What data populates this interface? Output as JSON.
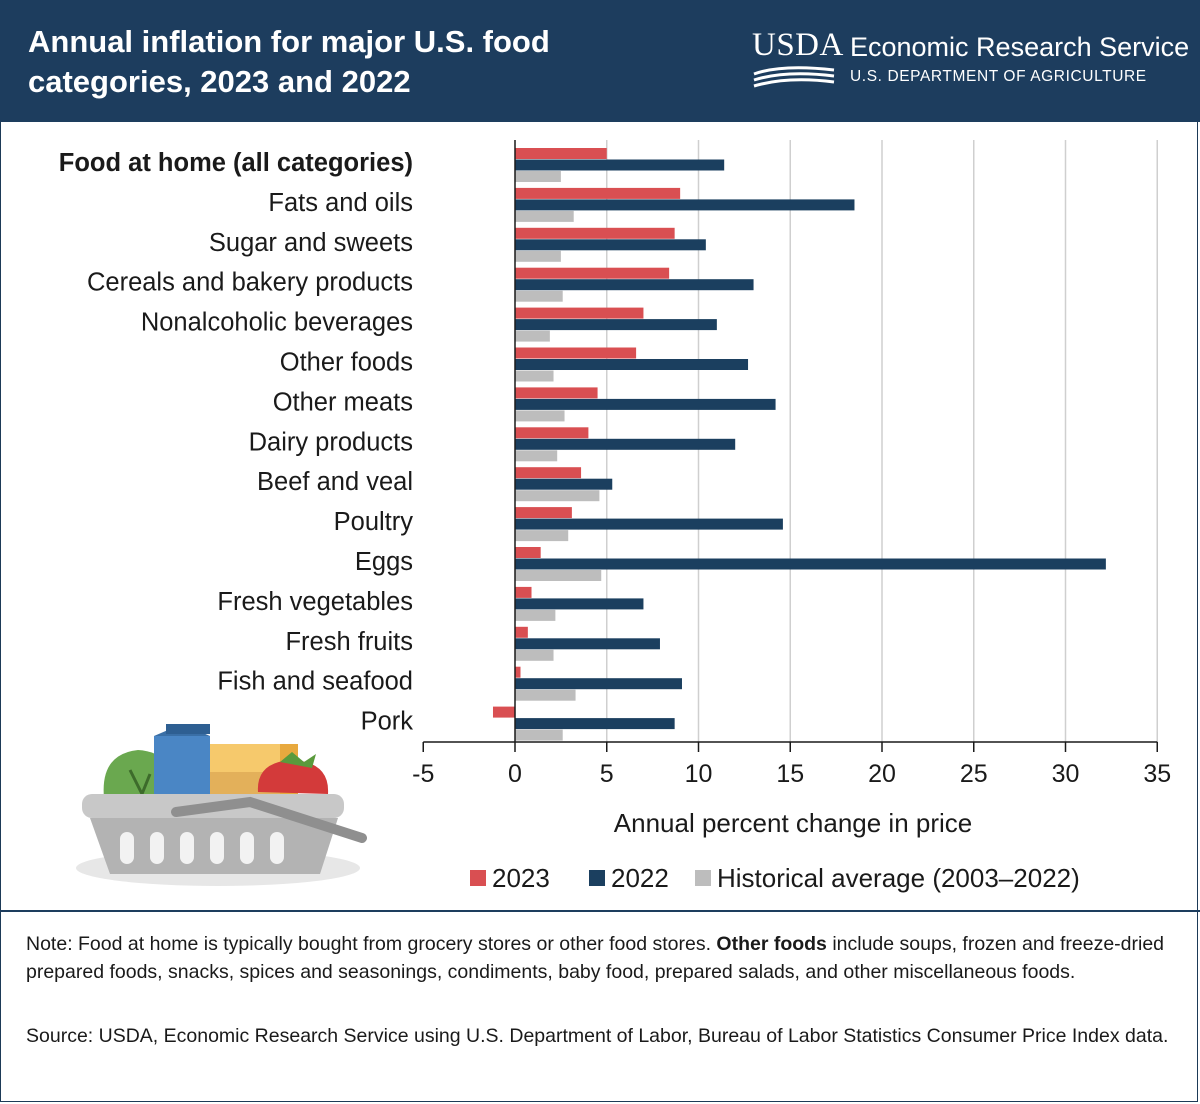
{
  "header": {
    "title": "Annual inflation for major U.S. food categories, 2023 and 2022",
    "logo_text": "USDA",
    "agency_name": "Economic Research Service",
    "agency_dept": "U.S. DEPARTMENT OF AGRICULTURE"
  },
  "colors": {
    "header_bg": "#1d3d5e",
    "series_2023": "#d94f52",
    "series_2022": "#1b3f5f",
    "series_hist": "#bdbdbd"
  },
  "chart_data": {
    "type": "bar",
    "orientation": "horizontal",
    "xlabel": "Annual percent change in price",
    "xlim": [
      -5,
      35
    ],
    "xticks": [
      -5,
      0,
      5,
      10,
      15,
      20,
      25,
      30,
      35
    ],
    "grid": true,
    "legend_position": "bottom",
    "categories": [
      "Food at home (all categories)",
      "Fats and oils",
      "Sugar and sweets",
      "Cereals and bakery products",
      "Nonalcoholic beverages",
      "Other foods",
      "Other meats",
      "Dairy products",
      "Beef and veal",
      "Poultry",
      "Eggs",
      "Fresh vegetables",
      "Fresh fruits",
      "Fish and seafood",
      "Pork"
    ],
    "bold_categories": [
      "Food at home (all categories)"
    ],
    "series": [
      {
        "name": "2023",
        "values": [
          5.0,
          9.0,
          8.7,
          8.4,
          7.0,
          6.6,
          4.5,
          4.0,
          3.6,
          3.1,
          1.4,
          0.9,
          0.7,
          0.3,
          -1.2
        ]
      },
      {
        "name": "2022",
        "values": [
          11.4,
          18.5,
          10.4,
          13.0,
          11.0,
          12.7,
          14.2,
          12.0,
          5.3,
          14.6,
          32.2,
          7.0,
          7.9,
          9.1,
          8.7
        ]
      },
      {
        "name": "Historical average (2003–2022)",
        "values": [
          2.5,
          3.2,
          2.5,
          2.6,
          1.9,
          2.1,
          2.7,
          2.3,
          4.6,
          2.9,
          4.7,
          2.2,
          2.1,
          3.3,
          2.6
        ]
      }
    ]
  },
  "footer": {
    "note_prefix": "Note: Food at home is typically bought from grocery stores or other food stores. ",
    "note_bold": "Other foods",
    "note_suffix": " include soups, frozen and freeze-dried prepared foods, snacks, spices and seasonings, condiments, baby food, prepared salads, and other miscellaneous foods.",
    "source": "Source: USDA, Economic Research Service using U.S. Department of Labor, Bureau of Labor Statistics Consumer Price Index data."
  }
}
